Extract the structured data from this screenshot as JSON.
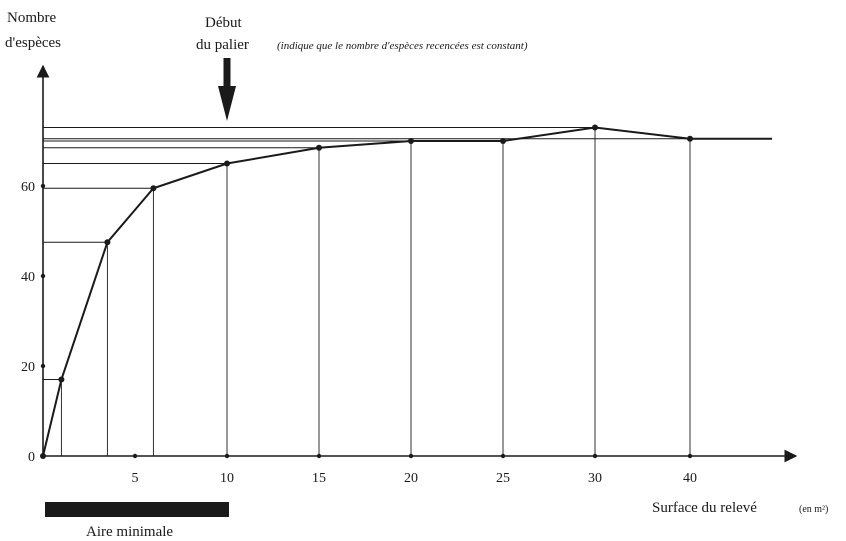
{
  "chart_data": {
    "type": "line",
    "title": "",
    "ylabel_line1": "Nombre",
    "ylabel_line2": "d'espèces",
    "xlabel": "Surface du relevé",
    "xlabel_unit": "(en m²)",
    "x": [
      0,
      1,
      3.5,
      6,
      10,
      15,
      20,
      25,
      30,
      40
    ],
    "y": [
      0,
      17,
      47.5,
      59.5,
      65,
      68.5,
      70,
      70,
      73,
      70.5
    ],
    "x_ticks": [
      {
        "value": 5,
        "label": "5"
      },
      {
        "value": 10,
        "label": "10"
      },
      {
        "value": 15,
        "label": "15"
      },
      {
        "value": 20,
        "label": "20"
      },
      {
        "value": 25,
        "label": "25"
      },
      {
        "value": 30,
        "label": "30"
      },
      {
        "value": 40,
        "label": "40"
      }
    ],
    "y_ticks": [
      {
        "value": 0,
        "label": "0"
      },
      {
        "value": 20,
        "label": "20"
      },
      {
        "value": 40,
        "label": "40"
      },
      {
        "value": 60,
        "label": "60"
      }
    ],
    "annotation_title_line1": "Début",
    "annotation_title_line2": "du palier",
    "annotation_note": "(indique que le nombre d'espèces recencées est constant)",
    "annotation_x": 10,
    "aire_minimale_label": "Aire minimale",
    "aire_minimale_range": [
      0,
      10
    ],
    "line_color": "#1a1a1a",
    "bar_color": "#1a1a1a"
  }
}
